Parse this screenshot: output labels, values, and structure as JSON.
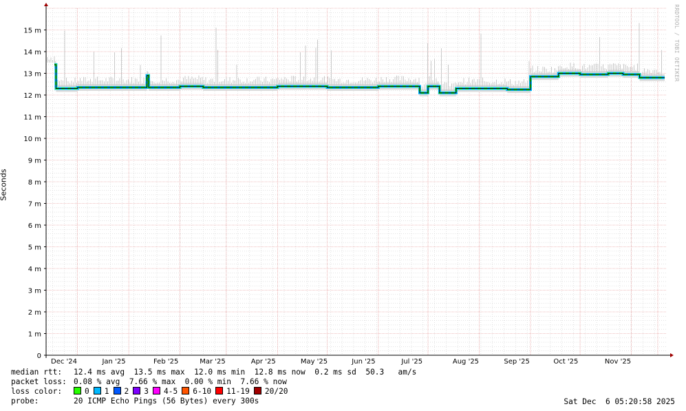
{
  "chart_data": {
    "type": "area",
    "ylabel": "Seconds",
    "ylim": [
      0,
      16
    ],
    "y_ticks": [
      "0",
      "1 m",
      "2 m",
      "3 m",
      "4 m",
      "5 m",
      "6 m",
      "7 m",
      "8 m",
      "9 m",
      "10 m",
      "11 m",
      "12 m",
      "13 m",
      "14 m",
      "15 m"
    ],
    "x_ticks": [
      "Dec '24",
      "Jan '25",
      "Feb '25",
      "Mar '25",
      "Apr '25",
      "May '25",
      "Jun '25",
      "Jul '25",
      "Aug '25",
      "Sep '25",
      "Oct '25",
      "Nov '25"
    ],
    "grid": true,
    "series": [
      {
        "name": "median rtt",
        "x": [
          "2024-12-01",
          "2024-12-02",
          "2024-12-15",
          "2025-01-01",
          "2025-01-15",
          "2025-01-26",
          "2025-01-27",
          "2025-02-01",
          "2025-02-15",
          "2025-03-01",
          "2025-03-15",
          "2025-04-01",
          "2025-04-15",
          "2025-05-01",
          "2025-05-15",
          "2025-06-01",
          "2025-06-15",
          "2025-07-01",
          "2025-07-10",
          "2025-07-15",
          "2025-07-22",
          "2025-08-01",
          "2025-08-15",
          "2025-09-01",
          "2025-09-14",
          "2025-09-15",
          "2025-10-01",
          "2025-10-02",
          "2025-10-15",
          "2025-11-01",
          "2025-11-10",
          "2025-11-20",
          "2025-12-05"
        ],
        "values": [
          13.4,
          12.3,
          12.35,
          12.35,
          12.35,
          12.9,
          12.35,
          12.35,
          12.4,
          12.35,
          12.35,
          12.35,
          12.4,
          12.4,
          12.35,
          12.35,
          12.4,
          12.4,
          12.1,
          12.4,
          12.1,
          12.3,
          12.3,
          12.25,
          12.25,
          12.85,
          12.85,
          13.0,
          12.95,
          13.0,
          12.95,
          12.8,
          12.8
        ]
      }
    ],
    "colors": {
      "median": "#000000",
      "smoke": "#c8c8c8",
      "grid_major": "#e08080",
      "grid_minor": "#d0d0d0",
      "loss_0": "#26ff00",
      "loss_1": "#00b8ff"
    }
  },
  "ylabel_text": "Seconds",
  "watermark": "RRDTOOL / TOBI OETIKER",
  "legend": {
    "median_label": "median rtt:",
    "median_values": "12.4 ms avg  13.5 ms max  12.0 ms min  12.8 ms now  0.2 ms sd  50.3   am/s",
    "loss_label": "packet loss:",
    "loss_values": "0.08 % avg  7.66 % max  0.00 % min  7.66 % now",
    "color_label": "loss color:",
    "loss_colors": [
      {
        "label": "0",
        "color": "#26ff00"
      },
      {
        "label": "1",
        "color": "#00b8ff"
      },
      {
        "label": "2",
        "color": "#0059ff"
      },
      {
        "label": "3",
        "color": "#7e00ff"
      },
      {
        "label": "4-5",
        "color": "#ff00ff"
      },
      {
        "label": "6-10",
        "color": "#ff5500"
      },
      {
        "label": "11-19",
        "color": "#ff0000"
      },
      {
        "label": "20/20",
        "color": "#a10000"
      }
    ],
    "probe_label": "probe:",
    "probe_value": "20 ICMP Echo Pings (56 Bytes) every 300s"
  },
  "timestamp": "Sat Dec  6 05:20:58 2025"
}
